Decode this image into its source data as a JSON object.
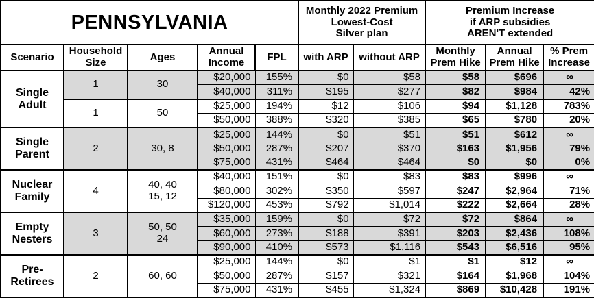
{
  "title": "PENNSYLVANIA",
  "panel_headers": {
    "premium": "Monthly 2022 Premium\nLowest-Cost\nSilver plan",
    "increase": "Premium Increase\nif ARP subsidies\nAREN'T extended"
  },
  "columns": {
    "scenario": "Scenario",
    "household": "Household\nSize",
    "ages": "Ages",
    "income": "Annual\nIncome",
    "fpl": "FPL",
    "with_arp": "with ARP",
    "without_arp": "without ARP",
    "monthly_hike": "Monthly\nPrem Hike",
    "annual_hike": "Annual\nPrem Hike",
    "pct_increase": "% Prem\nIncrease"
  },
  "shade_color": "#d9d9d9",
  "chart_data": {
    "type": "table",
    "groups": [
      {
        "scenario": "Single\nAdult",
        "subgroups": [
          {
            "household": "1",
            "ages": "30",
            "shaded": true,
            "rows": [
              [
                "$20,000",
                "155%",
                "$0",
                "$58",
                "$58",
                "$696",
                "∞"
              ],
              [
                "$40,000",
                "311%",
                "$195",
                "$277",
                "$82",
                "$984",
                "42%"
              ]
            ]
          },
          {
            "household": "1",
            "ages": "50",
            "shaded": false,
            "rows": [
              [
                "$25,000",
                "194%",
                "$12",
                "$106",
                "$94",
                "$1,128",
                "783%"
              ],
              [
                "$50,000",
                "388%",
                "$320",
                "$385",
                "$65",
                "$780",
                "20%"
              ]
            ]
          }
        ]
      },
      {
        "scenario": "Single\nParent",
        "subgroups": [
          {
            "household": "2",
            "ages": "30, 8",
            "shaded": true,
            "rows": [
              [
                "$25,000",
                "144%",
                "$0",
                "$51",
                "$51",
                "$612",
                "∞"
              ],
              [
                "$50,000",
                "287%",
                "$207",
                "$370",
                "$163",
                "$1,956",
                "79%"
              ],
              [
                "$75,000",
                "431%",
                "$464",
                "$464",
                "$0",
                "$0",
                "0%"
              ]
            ]
          }
        ]
      },
      {
        "scenario": "Nuclear\nFamily",
        "subgroups": [
          {
            "household": "4",
            "ages": "40, 40\n15, 12",
            "shaded": false,
            "rows": [
              [
                "$40,000",
                "151%",
                "$0",
                "$83",
                "$83",
                "$996",
                "∞"
              ],
              [
                "$80,000",
                "302%",
                "$350",
                "$597",
                "$247",
                "$2,964",
                "71%"
              ],
              [
                "$120,000",
                "453%",
                "$792",
                "$1,014",
                "$222",
                "$2,664",
                "28%"
              ]
            ]
          }
        ]
      },
      {
        "scenario": "Empty\nNesters",
        "subgroups": [
          {
            "household": "3",
            "ages": "50, 50\n24",
            "shaded": true,
            "rows": [
              [
                "$35,000",
                "159%",
                "$0",
                "$72",
                "$72",
                "$864",
                "∞"
              ],
              [
                "$60,000",
                "273%",
                "$188",
                "$391",
                "$203",
                "$2,436",
                "108%"
              ],
              [
                "$90,000",
                "410%",
                "$573",
                "$1,116",
                "$543",
                "$6,516",
                "95%"
              ]
            ]
          }
        ]
      },
      {
        "scenario": "Pre-\nRetirees",
        "subgroups": [
          {
            "household": "2",
            "ages": "60, 60",
            "shaded": false,
            "rows": [
              [
                "$25,000",
                "144%",
                "$0",
                "$1",
                "$1",
                "$12",
                "∞"
              ],
              [
                "$50,000",
                "287%",
                "$157",
                "$321",
                "$164",
                "$1,968",
                "104%"
              ],
              [
                "$75,000",
                "431%",
                "$455",
                "$1,324",
                "$869",
                "$10,428",
                "191%"
              ]
            ]
          }
        ]
      }
    ]
  }
}
